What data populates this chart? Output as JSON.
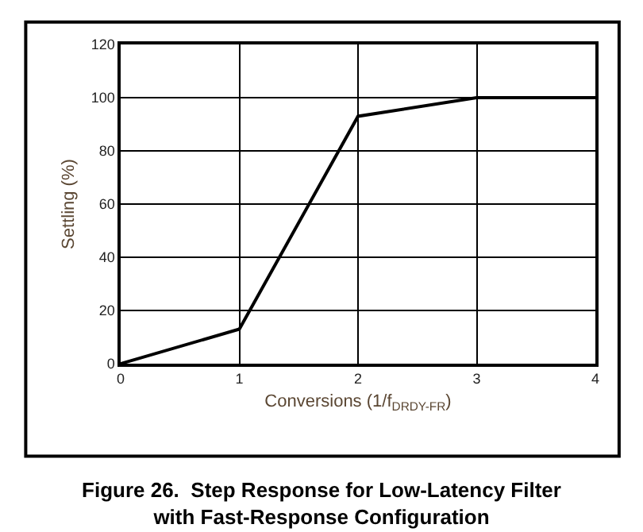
{
  "chart_data": {
    "type": "line",
    "title": "Figure 26.  Step Response for Low-Latency Filter\nwith Fast-Response Configuration",
    "xlabel": "Conversions (1/f$_{DRDY-FR}$)",
    "ylabel": "Settling (%)",
    "x": [
      0,
      1,
      2,
      3,
      4
    ],
    "series": [
      {
        "color": "#000000",
        "values": [
          0,
          13,
          93,
          100,
          100
        ]
      }
    ],
    "xlim": [
      0,
      4
    ],
    "xticks": [
      0,
      1,
      2,
      3,
      4
    ],
    "ylim": [
      0,
      120
    ],
    "yticks": [
      0,
      20,
      40,
      60,
      80,
      100,
      120
    ],
    "grid": true,
    "marker": "none",
    "line_style": "solid"
  }
}
